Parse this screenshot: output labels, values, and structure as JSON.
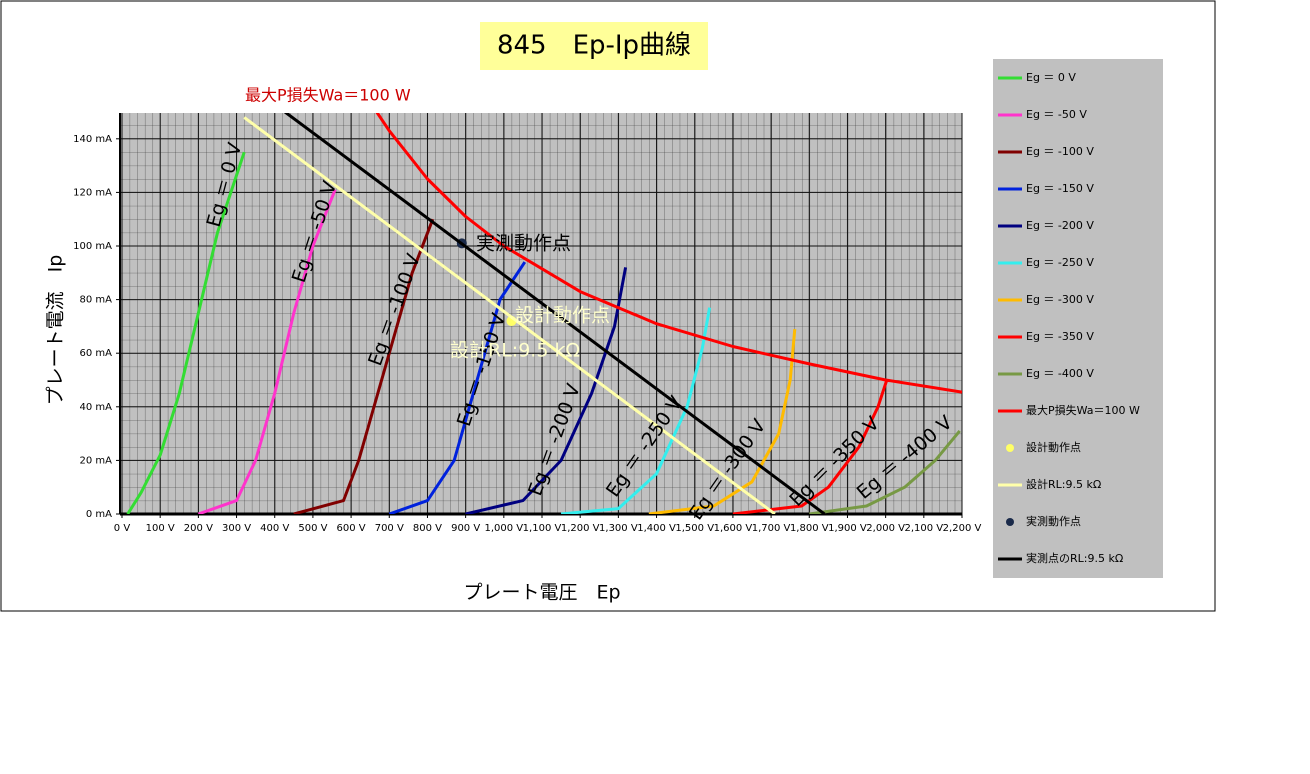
{
  "chart_data": {
    "type": "line",
    "title": "845　Ep-Ip曲線",
    "x_label": "プレート電圧　Ep",
    "y_label": "プレート電流　Ip",
    "xlim": [
      0,
      2200
    ],
    "ylim": [
      0,
      150
    ],
    "xticks": [
      {
        "value": 0,
        "label": "0 V"
      },
      {
        "value": 100,
        "label": "100 V"
      },
      {
        "value": 200,
        "label": "200 V"
      },
      {
        "value": 300,
        "label": "300 V"
      },
      {
        "value": 400,
        "label": "400 V"
      },
      {
        "value": 500,
        "label": "500 V"
      },
      {
        "value": 600,
        "label": "600 V"
      },
      {
        "value": 700,
        "label": "700 V"
      },
      {
        "value": 800,
        "label": "800 V"
      },
      {
        "value": 900,
        "label": "900 V"
      },
      {
        "value": 1000,
        "label": "1,000 V"
      },
      {
        "value": 1100,
        "label": "1,100 V"
      },
      {
        "value": 1200,
        "label": "1,200 V"
      },
      {
        "value": 1300,
        "label": "1,300 V"
      },
      {
        "value": 1400,
        "label": "1,400 V"
      },
      {
        "value": 1500,
        "label": "1,500 V"
      },
      {
        "value": 1600,
        "label": "1,600 V"
      },
      {
        "value": 1700,
        "label": "1,700 V"
      },
      {
        "value": 1800,
        "label": "1,800 V"
      },
      {
        "value": 1900,
        "label": "1,900 V"
      },
      {
        "value": 2000,
        "label": "2,000 V"
      },
      {
        "value": 2100,
        "label": "2,100 V"
      },
      {
        "value": 2200,
        "label": "2,200 V"
      }
    ],
    "yticks": [
      {
        "value": 0,
        "label": "0 mA"
      },
      {
        "value": 20,
        "label": "20 mA"
      },
      {
        "value": 40,
        "label": "40 mA"
      },
      {
        "value": 60,
        "label": "60 mA"
      },
      {
        "value": 80,
        "label": "80 mA"
      },
      {
        "value": 100,
        "label": "100 mA"
      },
      {
        "value": 120,
        "label": "120 mA"
      },
      {
        "value": 140,
        "label": "140 mA"
      }
    ],
    "grid": true,
    "series": [
      {
        "name": "Eg ＝ 0 V",
        "color": "#33dd33",
        "kind": "line",
        "x": [
          15,
          50,
          100,
          150,
          200,
          250,
          320
        ],
        "y": [
          0,
          8,
          22,
          45,
          75,
          105,
          135
        ]
      },
      {
        "name": "Eg ＝ -50 V",
        "color": "#ff33cc",
        "kind": "line",
        "x": [
          200,
          300,
          350,
          400,
          450,
          500,
          558
        ],
        "y": [
          0,
          5,
          20,
          45,
          75,
          100,
          121
        ]
      },
      {
        "name": "Eg ＝ -100 V",
        "color": "#800000",
        "kind": "line",
        "x": [
          450,
          580,
          620,
          670,
          720,
          760,
          814
        ],
        "y": [
          0,
          5,
          20,
          45,
          70,
          90,
          110
        ]
      },
      {
        "name": "Eg ＝ -150 V",
        "color": "#0022dd",
        "kind": "line",
        "x": [
          700,
          800,
          870,
          930,
          990,
          1055
        ],
        "y": [
          0,
          5,
          20,
          50,
          80,
          94
        ]
      },
      {
        "name": "Eg ＝ -200 V",
        "color": "#000080",
        "kind": "line",
        "x": [
          900,
          1050,
          1150,
          1230,
          1290,
          1319
        ],
        "y": [
          0,
          5,
          20,
          45,
          70,
          92
        ]
      },
      {
        "name": "Eg ＝ -250 V",
        "color": "#33eeee",
        "kind": "line",
        "x": [
          1150,
          1300,
          1400,
          1480,
          1520,
          1539
        ],
        "y": [
          0,
          2,
          15,
          40,
          62,
          77
        ]
      },
      {
        "name": "Eg ＝ -300 V",
        "color": "#ffbb00",
        "kind": "line",
        "x": [
          1380,
          1550,
          1650,
          1720,
          1750,
          1762
        ],
        "y": [
          0,
          3,
          12,
          30,
          50,
          69
        ]
      },
      {
        "name": "Eg ＝ -350 V",
        "color": "#ff0000",
        "kind": "line",
        "x": [
          1600,
          1780,
          1850,
          1930,
          1980,
          2003
        ],
        "y": [
          0,
          3,
          10,
          25,
          40,
          50
        ]
      },
      {
        "name": "Eg ＝ -400 V",
        "color": "#779944",
        "kind": "line",
        "x": [
          1800,
          1950,
          2050,
          2130,
          2194
        ],
        "y": [
          0,
          3,
          10,
          20,
          31
        ]
      },
      {
        "name": "最大P損失Wa＝100 W",
        "color": "#ff0000",
        "kind": "line",
        "x": [
          667,
          700,
          800,
          900,
          1000,
          1200,
          1400,
          1600,
          1800,
          2000,
          2200
        ],
        "y": [
          150,
          143,
          125,
          111,
          100,
          83,
          71,
          62.5,
          56,
          50,
          45.5
        ]
      },
      {
        "name": "設計動作点",
        "color": "#ffff66",
        "kind": "point",
        "x": [
          1020
        ],
        "y": [
          72
        ]
      },
      {
        "name": "設計RL:9.5 kΩ",
        "color": "#ffffaa",
        "kind": "line",
        "x": [
          320,
          1710
        ],
        "y": [
          148,
          0
        ]
      },
      {
        "name": "実測動作点",
        "color": "#1a2a4a",
        "kind": "point",
        "x": [
          890
        ],
        "y": [
          101
        ]
      },
      {
        "name": "実測点のRL:9.5 kΩ",
        "color": "#000000",
        "kind": "line",
        "x": [
          427,
          1840
        ],
        "y": [
          150,
          0
        ]
      }
    ]
  }
}
